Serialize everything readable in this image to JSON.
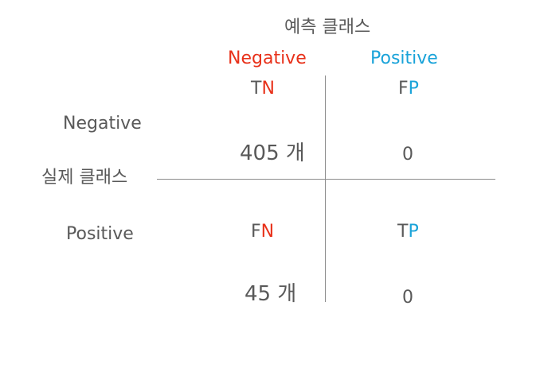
{
  "predicted_class_label": "예측 클래스",
  "actual_class_label": "실제 클래스",
  "columns": {
    "negative": "Negative",
    "positive": "Positive"
  },
  "rows": {
    "negative": "Negative",
    "positive": "Positive"
  },
  "cells": {
    "tn": {
      "prefix": "T",
      "suffix": "N",
      "value": "405 개"
    },
    "fp": {
      "prefix": "F",
      "suffix": "P",
      "value": "0"
    },
    "fn": {
      "prefix": "F",
      "suffix": "N",
      "value": "45 개"
    },
    "tp": {
      "prefix": "T",
      "suffix": "P",
      "value": "0"
    }
  },
  "colors": {
    "negative": "#e8311a",
    "positive": "#1aa3d9",
    "text": "#595959"
  }
}
